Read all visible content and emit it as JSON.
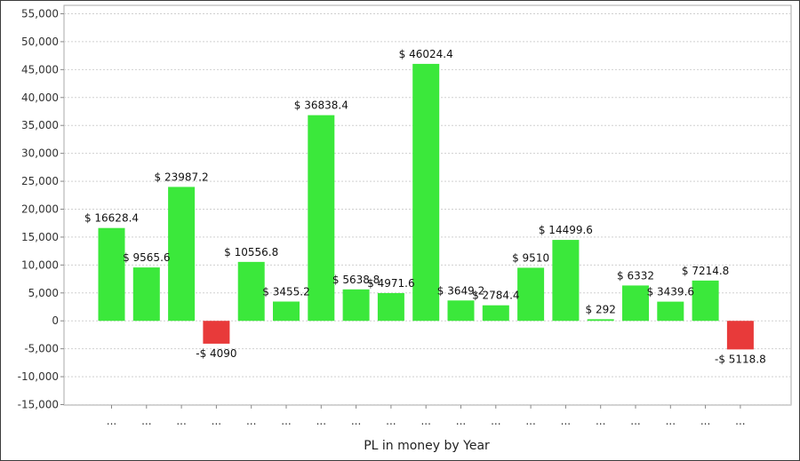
{
  "chart_data": {
    "type": "bar",
    "title": "",
    "xlabel": "PL in money by Year",
    "ylabel": "",
    "ylim": [
      -15000,
      55000
    ],
    "ytick_step": 5000,
    "y_tick_labels": [
      "-15,000",
      "-10,000",
      "-5,000",
      "0",
      "5,000",
      "10,000",
      "15,000",
      "20,000",
      "25,000",
      "30,000",
      "35,000",
      "40,000",
      "45,000",
      "50,000",
      "55,000"
    ],
    "categories": [
      "...",
      "...",
      "...",
      "...",
      "...",
      "...",
      "...",
      "...",
      "...",
      "...",
      "...",
      "...",
      "...",
      "...",
      "...",
      "...",
      "...",
      "...",
      "..."
    ],
    "values": [
      16628.4,
      9565.6,
      23987.2,
      -4090,
      10556.8,
      3455.2,
      36838.4,
      5638.8,
      4971.6,
      46024.4,
      3649.2,
      2784.4,
      9510,
      14499.6,
      292,
      6332,
      3439.6,
      7214.8,
      -5118.8
    ],
    "data_labels": [
      "$ 16628.4",
      "$ 9565.6",
      "$ 23987.2",
      "-$ 4090",
      "$ 10556.8",
      "$ 3455.2",
      "$ 36838.4",
      "$ 5638.8",
      "$ 4971.6",
      "$ 46024.4",
      "$ 3649.2",
      "$ 2784.4",
      "$ 9510",
      "$ 14499.6",
      "$ 292",
      "$ 6332",
      "$ 3439.6",
      "$ 7214.8",
      "-$ 5118.8"
    ],
    "grid": true,
    "colors": {
      "positive": "#3be83b",
      "negative": "#e83a3a",
      "grid": "#d0d0d0",
      "axis": "#888888"
    }
  }
}
